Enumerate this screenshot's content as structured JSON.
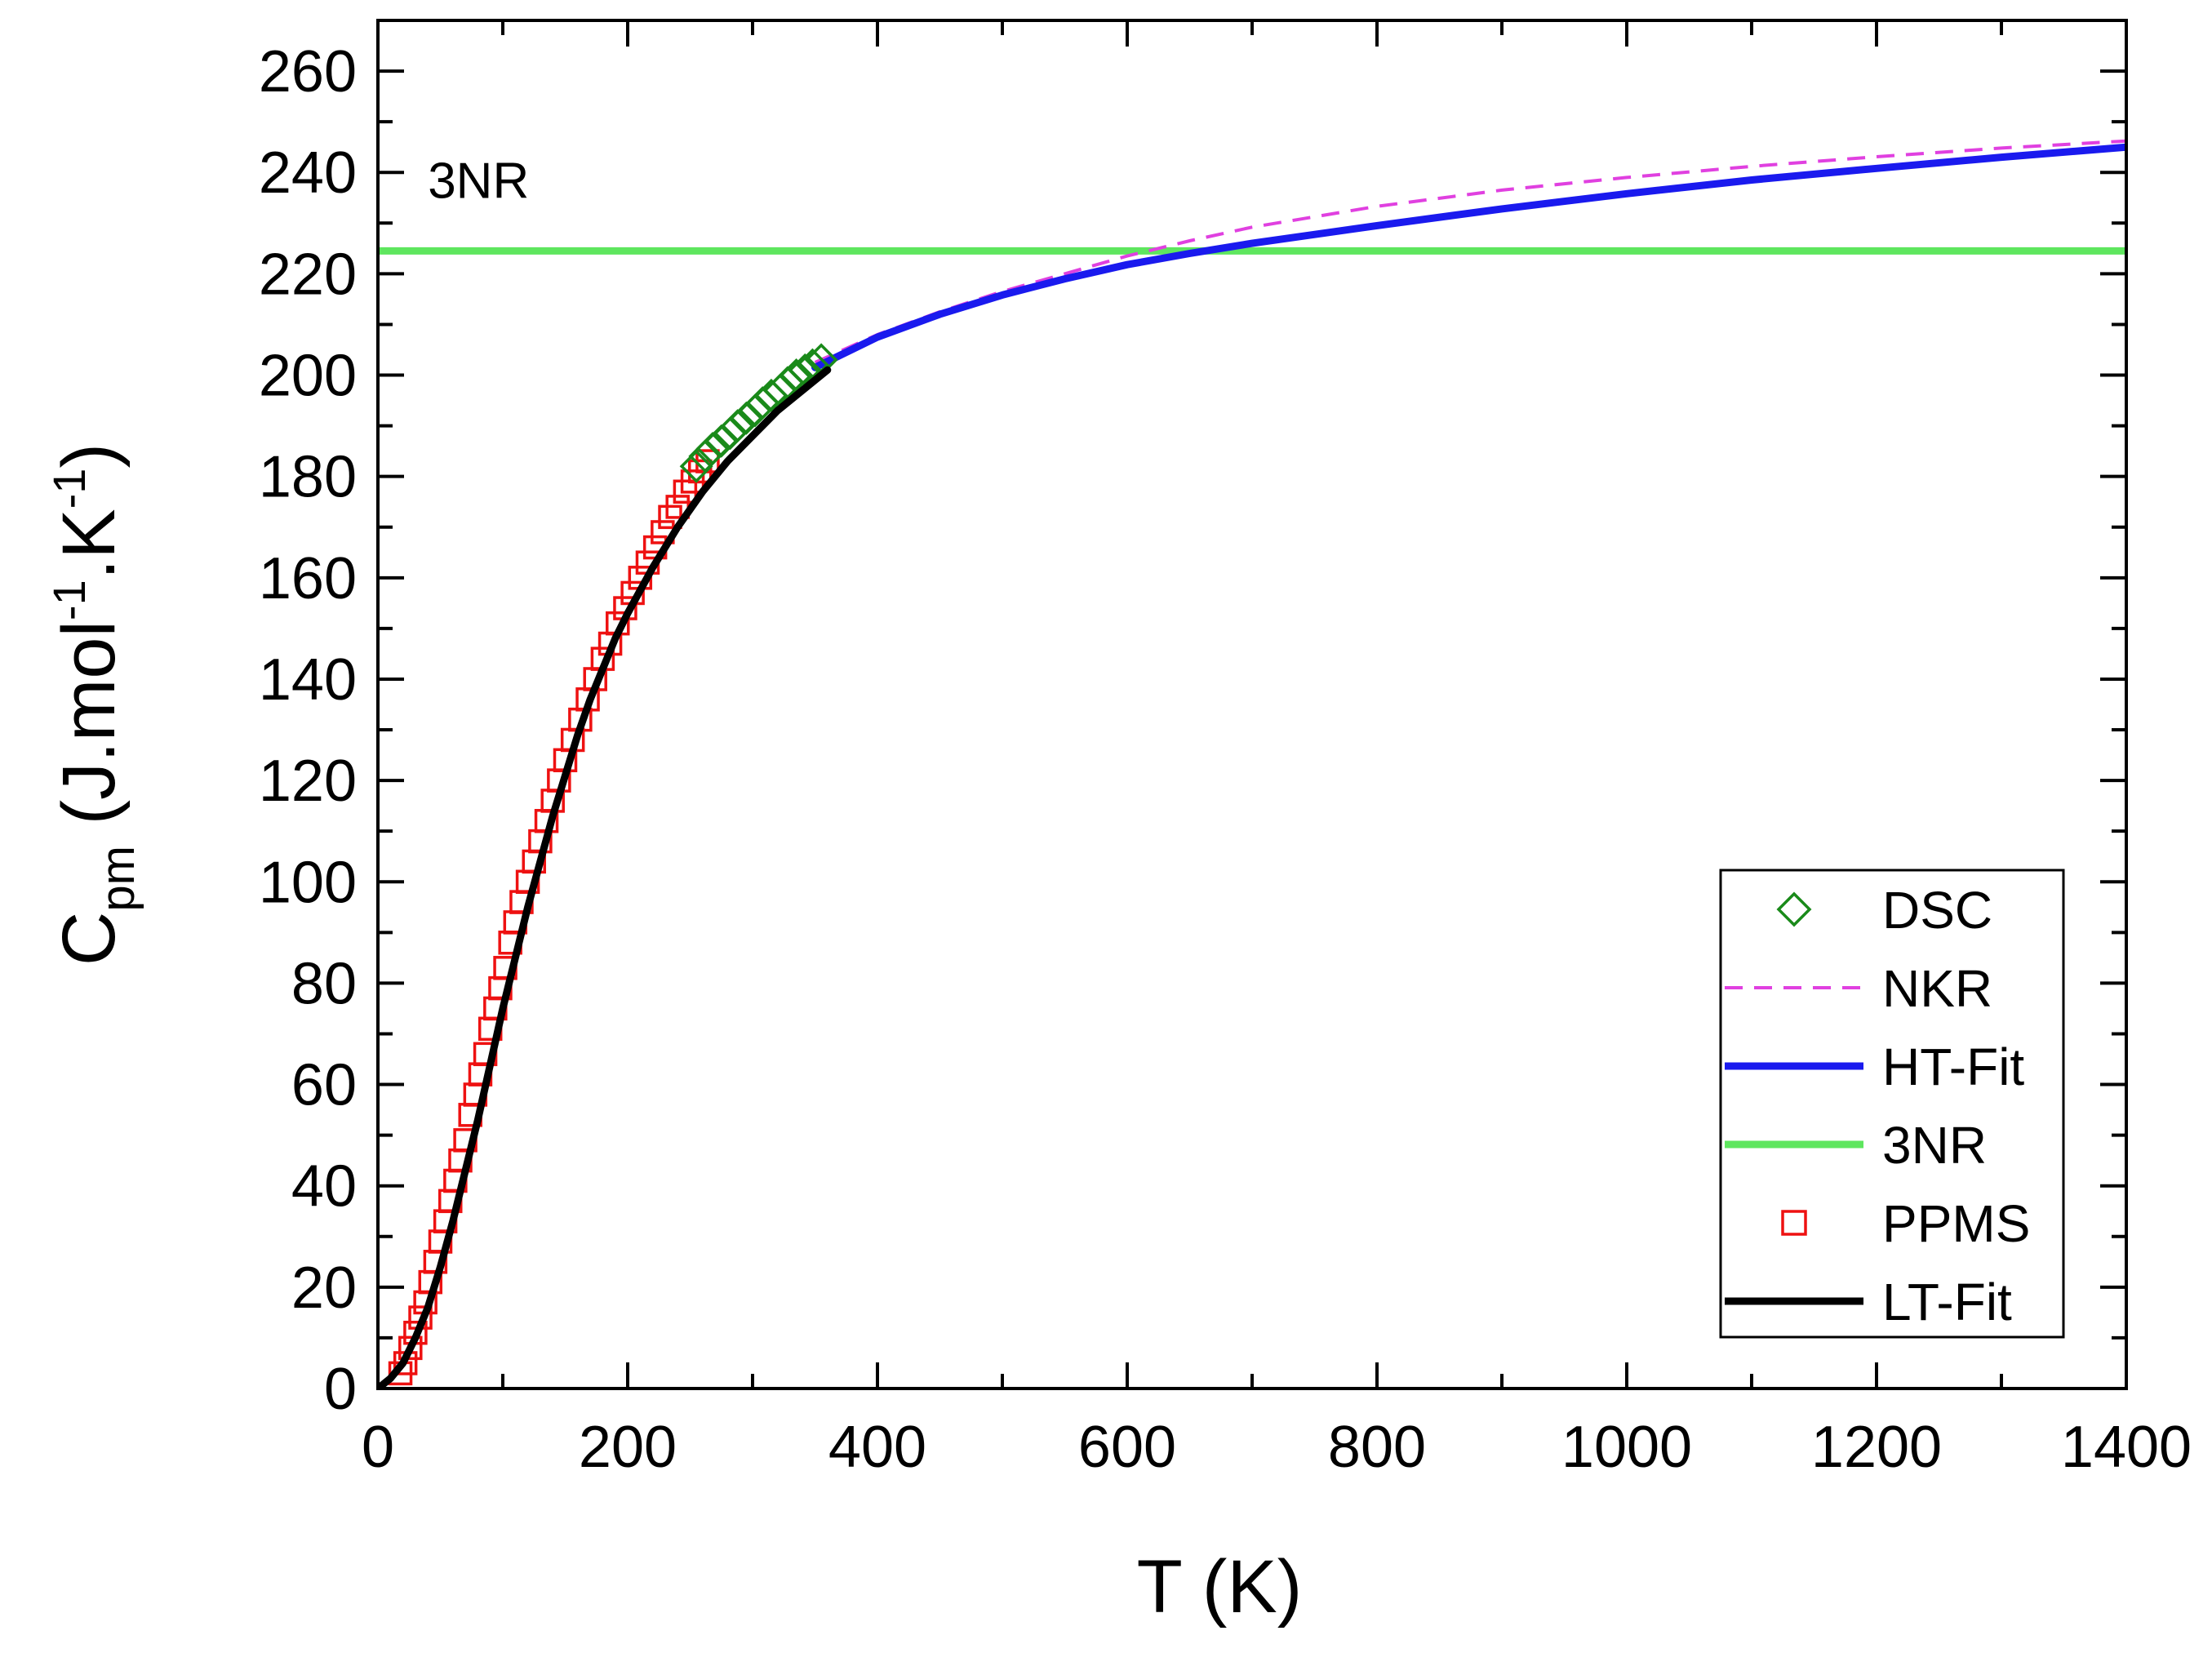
{
  "chart_data": {
    "type": "line",
    "title": "",
    "xlabel": "T (K)",
    "ylabel_main": "C",
    "ylabel_sub": "pm",
    "ylabel_rest": " (J.mol",
    "ylabel_sup1": "-1",
    "ylabel_mid": ".K",
    "ylabel_sup2": "-1",
    "ylabel_end": ")",
    "xlim": [
      0,
      1400
    ],
    "ylim": [
      0,
      270
    ],
    "xticks": [
      0,
      200,
      400,
      600,
      800,
      1000,
      1200,
      1400
    ],
    "yticks": [
      0,
      20,
      40,
      60,
      80,
      100,
      120,
      140,
      160,
      180,
      200,
      220,
      240,
      260
    ],
    "grid": false,
    "legend_position": "bottom-right",
    "annotations": [
      {
        "text": "3NR",
        "x": 40,
        "y": 235
      }
    ],
    "series": [
      {
        "name": "DSC",
        "kind": "marker",
        "marker": "diamond",
        "color": "#1a8a1a",
        "points": [
          [
            255,
            182
          ],
          [
            262,
            184
          ],
          [
            268,
            185.5
          ],
          [
            275,
            187
          ],
          [
            282,
            188.5
          ],
          [
            288,
            190
          ],
          [
            295,
            191.5
          ],
          [
            302,
            193
          ],
          [
            308,
            194.5
          ],
          [
            315,
            196
          ],
          [
            322,
            197
          ],
          [
            328,
            198.5
          ],
          [
            335,
            200
          ],
          [
            342,
            201
          ],
          [
            348,
            202
          ],
          [
            355,
            203
          ]
        ]
      },
      {
        "name": "NKR",
        "kind": "line",
        "dash": "dashed",
        "color": "#e040e0",
        "points": [
          [
            350,
            202.5
          ],
          [
            400,
            208
          ],
          [
            450,
            212.5
          ],
          [
            500,
            216.5
          ],
          [
            550,
            220
          ],
          [
            600,
            223.5
          ],
          [
            650,
            226.5
          ],
          [
            700,
            229.2
          ],
          [
            800,
            233.3
          ],
          [
            900,
            236.5
          ],
          [
            1000,
            239
          ],
          [
            1100,
            241.2
          ],
          [
            1200,
            243.1
          ],
          [
            1300,
            244.8
          ],
          [
            1400,
            246.2
          ]
        ]
      },
      {
        "name": "HT-Fit",
        "kind": "line",
        "dash": "solid",
        "color": "#1a1aee",
        "points": [
          [
            350,
            201.5
          ],
          [
            400,
            207.5
          ],
          [
            450,
            212
          ],
          [
            500,
            215.8
          ],
          [
            550,
            219
          ],
          [
            600,
            221.8
          ],
          [
            650,
            224
          ],
          [
            700,
            226
          ],
          [
            800,
            229.5
          ],
          [
            900,
            232.8
          ],
          [
            1000,
            235.8
          ],
          [
            1100,
            238.5
          ],
          [
            1200,
            240.8
          ],
          [
            1300,
            243
          ],
          [
            1400,
            245
          ]
        ]
      },
      {
        "name": "3NR",
        "kind": "line",
        "dash": "solid",
        "color": "#5ee65e",
        "points": [
          [
            0,
            224.5
          ],
          [
            1400,
            224.5
          ]
        ]
      },
      {
        "name": "PPMS",
        "kind": "marker",
        "marker": "square",
        "color": "#ee1111",
        "points": [
          [
            18,
            3
          ],
          [
            22,
            5
          ],
          [
            26,
            8
          ],
          [
            30,
            11
          ],
          [
            34,
            14
          ],
          [
            38,
            17
          ],
          [
            42,
            21
          ],
          [
            46,
            25
          ],
          [
            50,
            29
          ],
          [
            54,
            33
          ],
          [
            58,
            37
          ],
          [
            62,
            41
          ],
          [
            66,
            45
          ],
          [
            70,
            49
          ],
          [
            74,
            54
          ],
          [
            78,
            58
          ],
          [
            82,
            62
          ],
          [
            86,
            66
          ],
          [
            90,
            71
          ],
          [
            94,
            75
          ],
          [
            98,
            79
          ],
          [
            102,
            83
          ],
          [
            106,
            88
          ],
          [
            110,
            92
          ],
          [
            115,
            96
          ],
          [
            120,
            100
          ],
          [
            125,
            104
          ],
          [
            130,
            108
          ],
          [
            135,
            112
          ],
          [
            140,
            116
          ],
          [
            145,
            120
          ],
          [
            150,
            124
          ],
          [
            156,
            128
          ],
          [
            162,
            132
          ],
          [
            168,
            136
          ],
          [
            174,
            140
          ],
          [
            180,
            144
          ],
          [
            186,
            147
          ],
          [
            192,
            151
          ],
          [
            198,
            154
          ],
          [
            204,
            157
          ],
          [
            210,
            160
          ],
          [
            216,
            163
          ],
          [
            222,
            166
          ],
          [
            228,
            169
          ],
          [
            234,
            172
          ],
          [
            240,
            174
          ],
          [
            246,
            177
          ],
          [
            252,
            179
          ],
          [
            258,
            181
          ],
          [
            264,
            183
          ]
        ]
      },
      {
        "name": "LT-Fit",
        "kind": "line",
        "dash": "solid",
        "color": "#000000",
        "points": [
          [
            0,
            0
          ],
          [
            10,
            2
          ],
          [
            20,
            5
          ],
          [
            30,
            10
          ],
          [
            40,
            16
          ],
          [
            50,
            24
          ],
          [
            60,
            33
          ],
          [
            70,
            43
          ],
          [
            80,
            53
          ],
          [
            90,
            64
          ],
          [
            100,
            75
          ],
          [
            110,
            85
          ],
          [
            120,
            95
          ],
          [
            130,
            104
          ],
          [
            140,
            113
          ],
          [
            150,
            121
          ],
          [
            160,
            129
          ],
          [
            170,
            136
          ],
          [
            180,
            142
          ],
          [
            190,
            148
          ],
          [
            200,
            153
          ],
          [
            220,
            162
          ],
          [
            240,
            170
          ],
          [
            260,
            177
          ],
          [
            280,
            183
          ],
          [
            300,
            188
          ],
          [
            320,
            193
          ],
          [
            340,
            197
          ],
          [
            360,
            201
          ]
        ]
      }
    ]
  }
}
